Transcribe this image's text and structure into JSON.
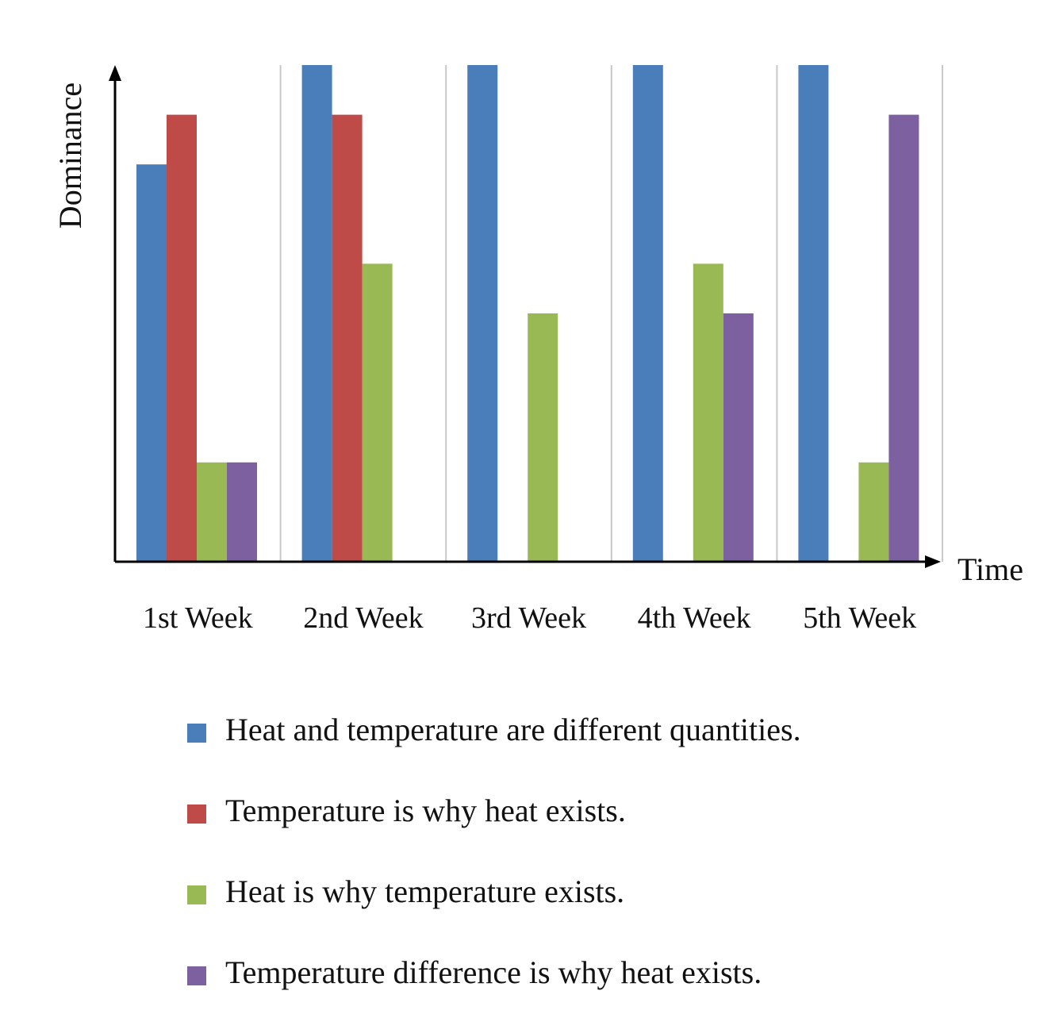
{
  "chart_data": {
    "type": "bar",
    "xlabel": "Time",
    "ylabel": "Dominance",
    "categories": [
      "1st Week",
      "2nd Week",
      "3rd Week",
      "4th Week",
      "5th Week"
    ],
    "ylim": [
      0,
      10
    ],
    "grid": false,
    "category_separators": true,
    "legend_placement": "bottom",
    "series": [
      {
        "name": "Heat and temperature are different quantities.",
        "color": "#4a7ebb",
        "values": [
          8,
          10,
          10,
          10,
          10
        ]
      },
      {
        "name": "Temperature is why heat exists.",
        "color": "#be4b48",
        "values": [
          9,
          9,
          0,
          0,
          0
        ]
      },
      {
        "name": "Heat is why temperature exists.",
        "color": "#98b954",
        "values": [
          2,
          6,
          5,
          6,
          2
        ]
      },
      {
        "name": "Temperature difference is why heat exists.",
        "color": "#7d60a0",
        "values": [
          2,
          0,
          0,
          5,
          9
        ]
      }
    ]
  }
}
